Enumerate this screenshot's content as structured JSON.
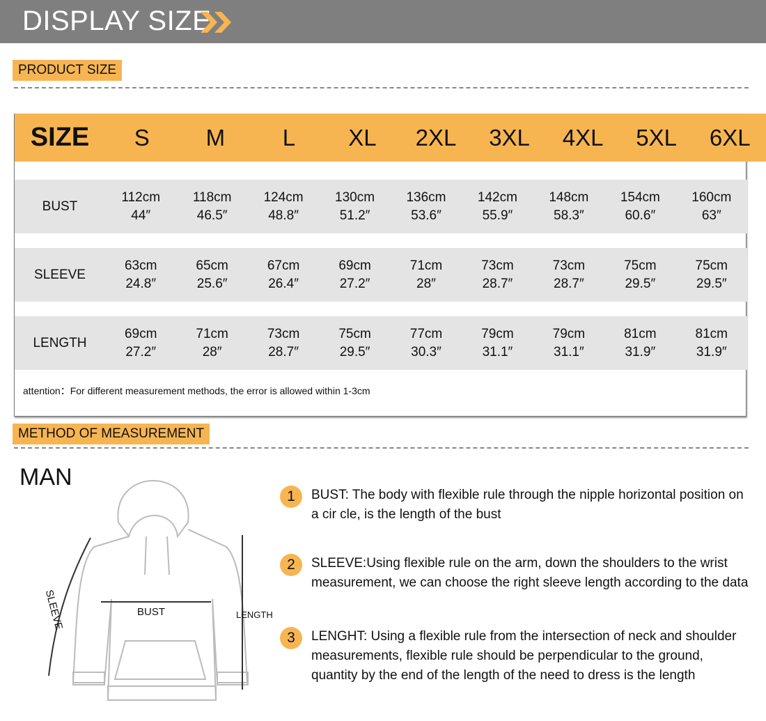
{
  "header": {
    "title": "DISPLAY SIZE",
    "arrow_icon": "double-chevron-right",
    "accent": "#f7b552",
    "bar_color": "#7f7f7f"
  },
  "product_size_label": "PRODUCT SIZE",
  "table": {
    "headers": [
      "SIZE",
      "S",
      "M",
      "L",
      "XL",
      "2XL",
      "3XL",
      "4XL",
      "5XL",
      "6XL"
    ],
    "rows": [
      {
        "label": "BUST",
        "cm": [
          "112cm",
          "118cm",
          "124cm",
          "130cm",
          "136cm",
          "142cm",
          "148cm",
          "154cm",
          "160cm"
        ],
        "in": [
          "44″",
          "46.5″",
          "48.8″",
          "51.2″",
          "53.6″",
          "55.9″",
          "58.3″",
          "60.6″",
          "63″"
        ]
      },
      {
        "label": "SLEEVE",
        "cm": [
          "63cm",
          "65cm",
          "67cm",
          "69cm",
          "71cm",
          "73cm",
          "73cm",
          "75cm",
          "75cm"
        ],
        "in": [
          "24.8″",
          "25.6″",
          "26.4″",
          "27.2″",
          "28″",
          "28.7″",
          "28.7″",
          "29.5″",
          "29.5″"
        ]
      },
      {
        "label": "LENGTH",
        "cm": [
          "69cm",
          "71cm",
          "73cm",
          "75cm",
          "77cm",
          "79cm",
          "79cm",
          "81cm",
          "81cm"
        ],
        "in": [
          "27.2″",
          "28″",
          "28.7″",
          "29.5″",
          "30.3″",
          "31.1″",
          "31.1″",
          "31.9″",
          "31.9″"
        ]
      }
    ],
    "note": "attention：For different measurement methods, the error is allowed within 1-3cm"
  },
  "method_label": "METHOD OF MEASUREMENT",
  "figure": {
    "title": "MAN",
    "labels": {
      "sleeve": "SLEEVE",
      "bust": "BUST",
      "length": "LENGTH"
    }
  },
  "instructions": [
    {
      "n": "1",
      "text": "BUST: The body with flexible rule through the nipple horizontal position on a cir   cle, is the length of the bust"
    },
    {
      "n": "2",
      "text": "SLEEVE:Using flexible rule on the arm, down the shoulders to the wrist measurement, we can choose the right sleeve length according to the data"
    },
    {
      "n": "3",
      "text": "LENGHT: Using a flexible rule from the intersection of neck and shoulder measurements, flexible rule should be perpendicular to the ground, quantity by the end of the length of the need to dress is the length"
    }
  ]
}
